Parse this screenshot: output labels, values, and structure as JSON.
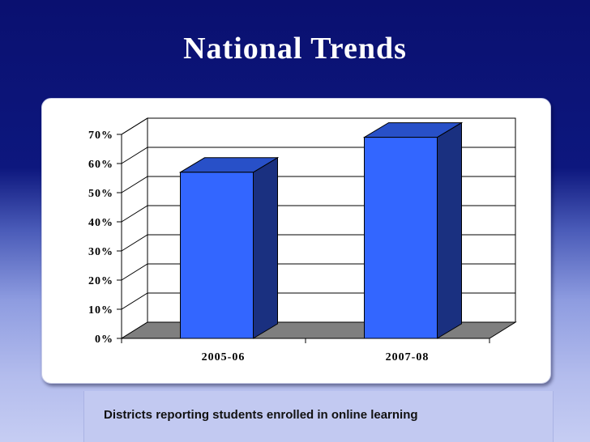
{
  "slide": {
    "title": "National Trends",
    "caption": "Districts reporting students enrolled in online learning"
  },
  "chart_data": {
    "type": "bar",
    "categories": [
      "2005-06",
      "2007-08"
    ],
    "values": [
      57,
      69
    ],
    "ylim": [
      0,
      70
    ],
    "yticks": [
      0,
      10,
      20,
      30,
      40,
      50,
      60,
      70
    ],
    "ytick_format": "{v}%",
    "grid": true,
    "three_d": true,
    "colors": {
      "bar_front": "#3366ff",
      "bar_side": "#1a3080",
      "bar_top": "#2850c8",
      "floor": "#7f7f7f"
    }
  }
}
